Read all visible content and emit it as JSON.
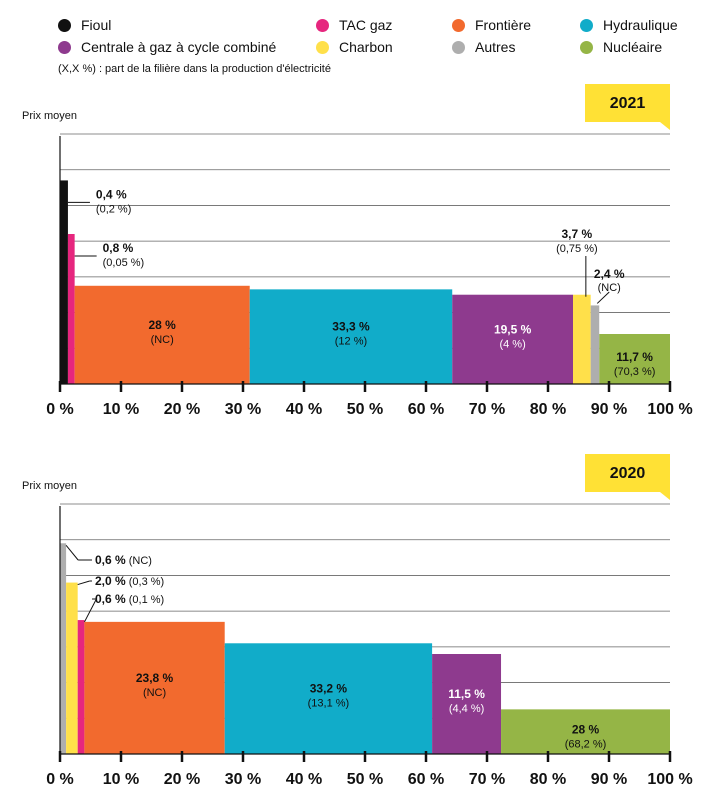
{
  "legend": {
    "items": [
      {
        "label": "Fioul",
        "color": "#111111"
      },
      {
        "label": "Centrale à gaz à cycle combiné",
        "color": "#8e3a8e"
      },
      {
        "label": "TAC gaz",
        "color": "#e6267e"
      },
      {
        "label": "Charbon",
        "color": "#ffe04a"
      },
      {
        "label": "Frontière",
        "color": "#f26a2e"
      },
      {
        "label": "Autres",
        "color": "#aeaeae"
      },
      {
        "label": "Hydraulique",
        "color": "#11acc9"
      },
      {
        "label": "Nucléaire",
        "color": "#95b546"
      }
    ],
    "note": "(X,X %) : part de la filière dans la production d'électricité"
  },
  "chart_data": [
    {
      "type": "bar",
      "title": "2021",
      "ylabel": "Prix moyen",
      "x_ticks": [
        "0 %",
        "10 %",
        "20 %",
        "30 %",
        "40 %",
        "50 %",
        "60 %",
        "70 %",
        "80 %",
        "90 %",
        "100 %"
      ],
      "xlim": [
        0,
        100
      ],
      "ylim": [
        0,
        7
      ],
      "grid": true,
      "bars": [
        {
          "filiere": "Fioul",
          "x_start": 0.0,
          "x_end": 1.3,
          "y": 5.7,
          "color": "#111111",
          "label": "0,4 %",
          "sub": "(0,2 %)"
        },
        {
          "filiere": "TAC gaz",
          "x_start": 1.3,
          "x_end": 2.4,
          "y": 4.2,
          "color": "#e6267e",
          "label": "0,8 %",
          "sub": "(0,05 %)"
        },
        {
          "filiere": "Frontière",
          "x_start": 2.4,
          "x_end": 31.1,
          "y": 2.75,
          "color": "#f26a2e",
          "label": "28 %",
          "sub": "(NC)"
        },
        {
          "filiere": "Hydraulique",
          "x_start": 31.1,
          "x_end": 64.3,
          "y": 2.65,
          "color": "#11acc9",
          "label": "33,3 %",
          "sub": "(12 %)"
        },
        {
          "filiere": "Centrale à gaz à cycle combiné",
          "x_start": 64.3,
          "x_end": 84.1,
          "y": 2.5,
          "color": "#8e3a8e",
          "label": "19,5 %",
          "sub": "(4 %)"
        },
        {
          "filiere": "Charbon",
          "x_start": 84.1,
          "x_end": 87.0,
          "y": 2.5,
          "color": "#ffe04a",
          "label": "3,7 %",
          "sub": "(0,75 %)"
        },
        {
          "filiere": "Autres",
          "x_start": 87.0,
          "x_end": 88.4,
          "y": 2.2,
          "color": "#aeaeae",
          "label": "2,4 %",
          "sub": "(NC)"
        },
        {
          "filiere": "Nucléaire",
          "x_start": 88.4,
          "x_end": 100.0,
          "y": 1.4,
          "color": "#95b546",
          "label": "11,7 %",
          "sub": "(70,3 %)"
        }
      ]
    },
    {
      "type": "bar",
      "title": "2020",
      "ylabel": "Prix moyen",
      "x_ticks": [
        "0 %",
        "10 %",
        "20 %",
        "30 %",
        "40 %",
        "50 %",
        "60 %",
        "70 %",
        "80 %",
        "90 %",
        "100 %"
      ],
      "xlim": [
        0,
        100
      ],
      "ylim": [
        0,
        7
      ],
      "grid": true,
      "bars": [
        {
          "filiere": "Autres",
          "x_start": 0.0,
          "x_end": 1.0,
          "y": 5.9,
          "color": "#aeaeae",
          "label": "0,6 %",
          "sub": "(NC)"
        },
        {
          "filiere": "Charbon",
          "x_start": 1.0,
          "x_end": 2.9,
          "y": 4.8,
          "color": "#ffe04a",
          "label": "2,0 %",
          "sub": "(0,3 %)"
        },
        {
          "filiere": "TAC gaz",
          "x_start": 2.9,
          "x_end": 4.0,
          "y": 3.75,
          "color": "#e6267e",
          "label": "0,6 %",
          "sub": "(0,1 %)"
        },
        {
          "filiere": "Frontière",
          "x_start": 4.0,
          "x_end": 27.0,
          "y": 3.7,
          "color": "#f26a2e",
          "label": "23,8 %",
          "sub": "(NC)"
        },
        {
          "filiere": "Hydraulique",
          "x_start": 27.0,
          "x_end": 61.0,
          "y": 3.1,
          "color": "#11acc9",
          "label": "33,2 %",
          "sub": "(13,1 %)"
        },
        {
          "filiere": "Centrale à gaz à cycle combiné",
          "x_start": 61.0,
          "x_end": 72.3,
          "y": 2.8,
          "color": "#8e3a8e",
          "label": "11,5 %",
          "sub": "(4,4 %)"
        },
        {
          "filiere": "Nucléaire",
          "x_start": 72.3,
          "x_end": 100.0,
          "y": 1.25,
          "color": "#95b546",
          "label": "28 %",
          "sub": "(68,2 %)"
        }
      ]
    }
  ]
}
